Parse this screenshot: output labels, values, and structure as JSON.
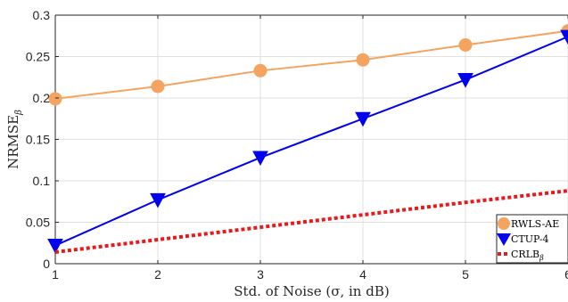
{
  "chart_data": {
    "type": "line",
    "title": "",
    "xlabel": "Std. of Noise (σ, in dB)",
    "ylabel_main": "NRMSE",
    "ylabel_sub": "β",
    "x": [
      1,
      2,
      3,
      4,
      5,
      6
    ],
    "xlim": [
      1,
      6
    ],
    "ylim": [
      0,
      0.3
    ],
    "x_ticks": [
      "1",
      "2",
      "3",
      "4",
      "5",
      "6"
    ],
    "y_ticks": [
      "0",
      "0.05",
      "0.1",
      "0.15",
      "0.2",
      "0.25",
      "0.3"
    ],
    "grid": true,
    "legend_position": "bottom-right",
    "series": [
      {
        "name": "RWLS-AE",
        "color": "#F4A460",
        "marker": "circle",
        "line_style": "solid",
        "values": [
          0.199,
          0.214,
          0.233,
          0.246,
          0.264,
          0.281
        ]
      },
      {
        "name": "CTUP-4",
        "color": "#0000EE",
        "marker": "triangle-down",
        "line_style": "solid",
        "values": [
          0.022,
          0.077,
          0.128,
          0.175,
          0.222,
          0.274
        ]
      },
      {
        "name": "CRLB",
        "name_subscript": "β",
        "color": "#E8191A",
        "marker": "none",
        "line_style": "dotted",
        "values": [
          0.014,
          0.029,
          0.044,
          0.059,
          0.074,
          0.088
        ]
      }
    ]
  }
}
